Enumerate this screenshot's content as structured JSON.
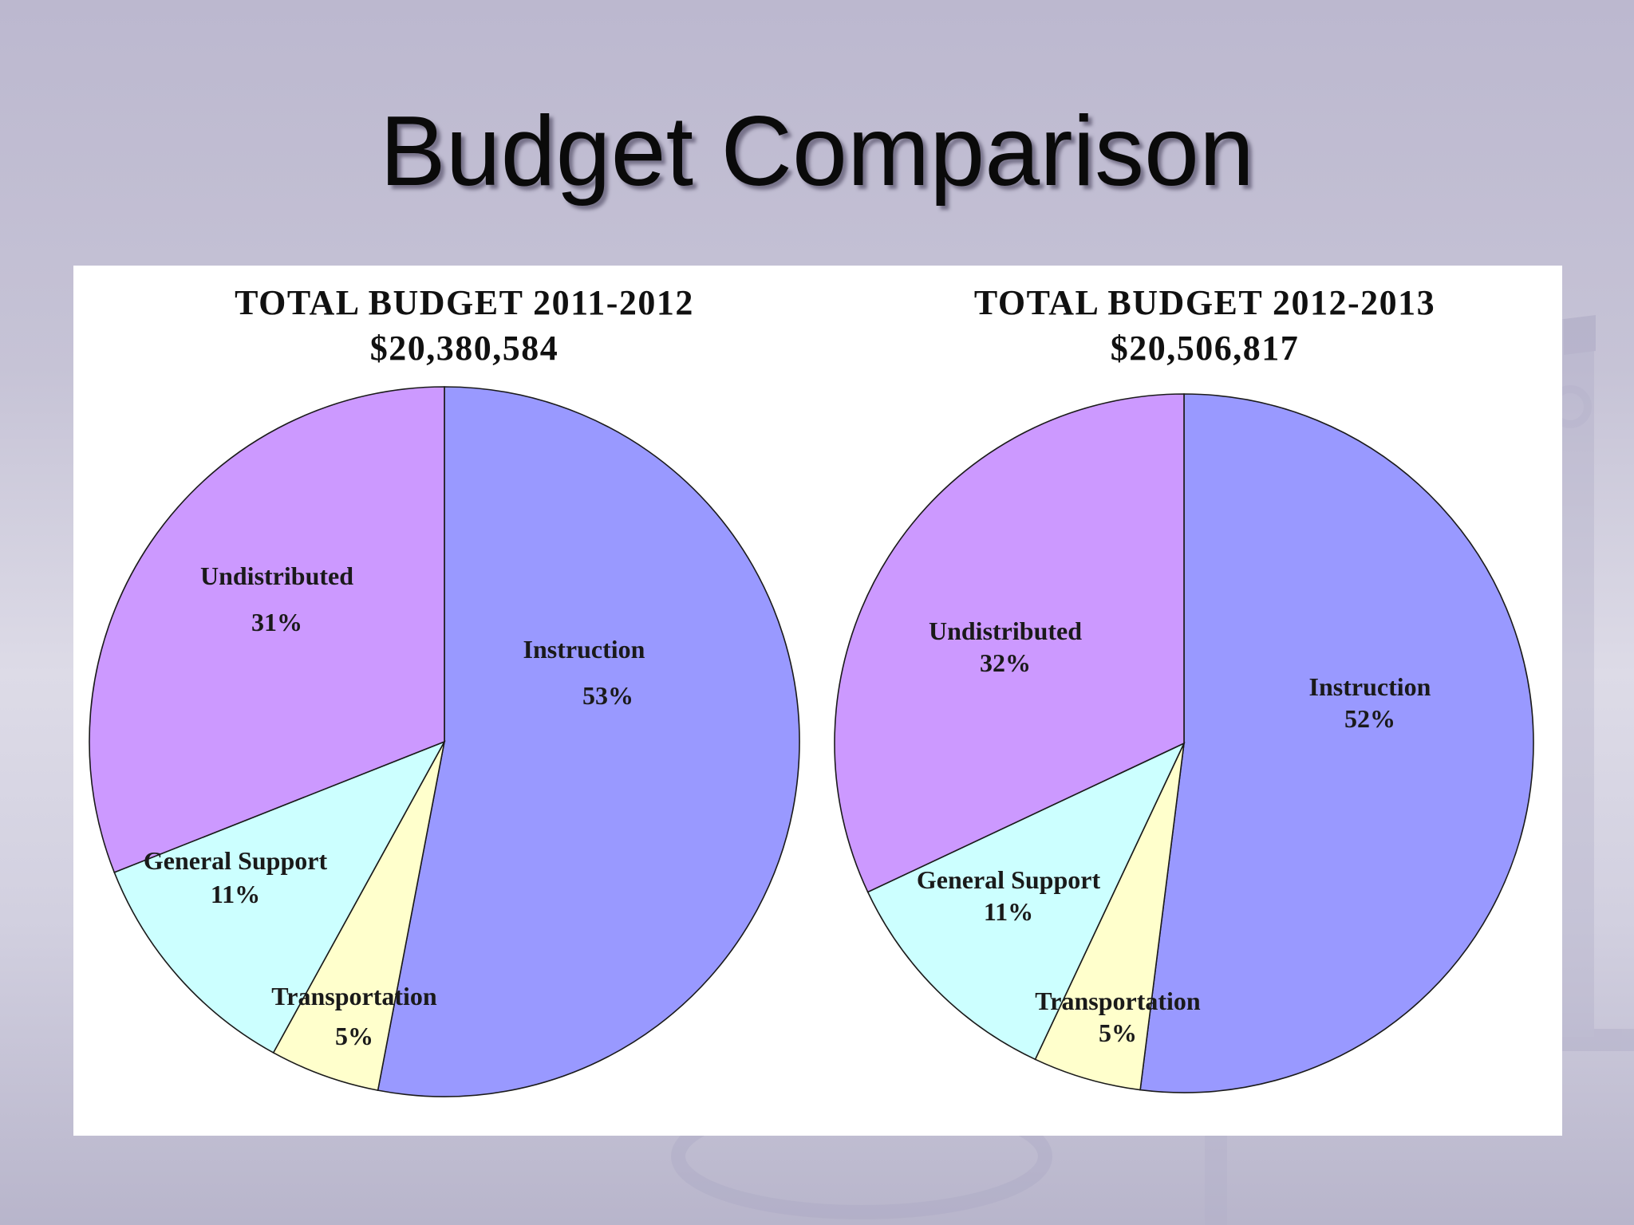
{
  "slide": {
    "title": "Budget Comparison"
  },
  "chart_data": [
    {
      "type": "pie",
      "title": "TOTAL BUDGET 2011-2012",
      "subtitle": "$20,380,584",
      "slices": [
        {
          "label": "Instruction",
          "value": 53,
          "pct_text": "53%",
          "color": "#9999ff"
        },
        {
          "label": "Transportation",
          "value": 5,
          "pct_text": "5%",
          "color": "#ffffcc"
        },
        {
          "label": "General Support",
          "value": 11,
          "pct_text": "11%",
          "color": "#ccffff"
        },
        {
          "label": "Undistributed",
          "value": 31,
          "pct_text": "31%",
          "color": "#cc99ff"
        }
      ]
    },
    {
      "type": "pie",
      "title": "TOTAL BUDGET 2012-2013",
      "subtitle": "$20,506,817",
      "slices": [
        {
          "label": "Instruction",
          "value": 52,
          "pct_text": "52%",
          "color": "#9999ff"
        },
        {
          "label": "Transportation",
          "value": 5,
          "pct_text": "5%",
          "color": "#ffffcc"
        },
        {
          "label": "General Support",
          "value": 11,
          "pct_text": "11%",
          "color": "#ccffff"
        },
        {
          "label": "Undistributed",
          "value": 32,
          "pct_text": "32%",
          "color": "#cc99ff"
        }
      ]
    }
  ]
}
